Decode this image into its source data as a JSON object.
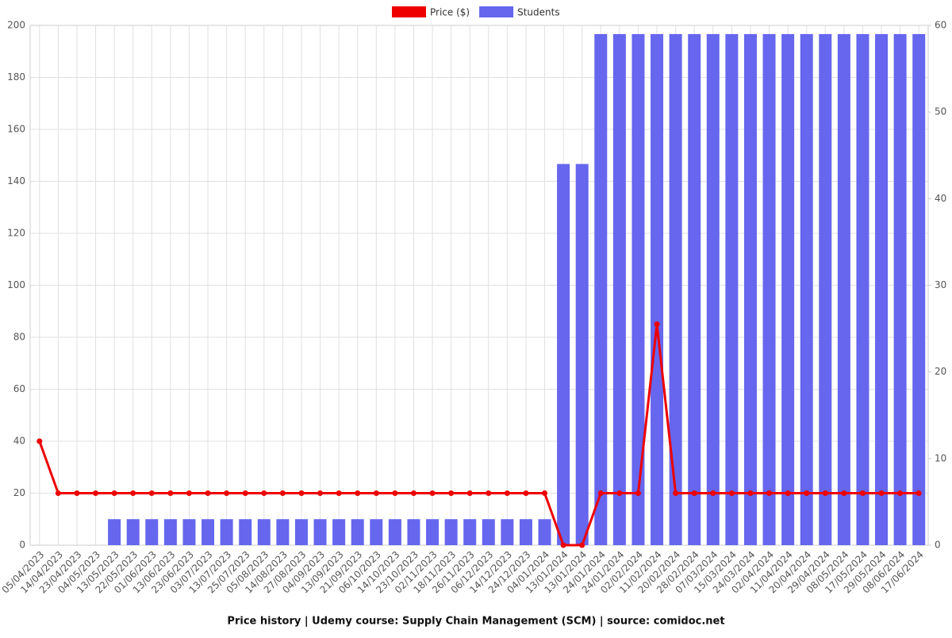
{
  "chart_data": {
    "type": "bar-line",
    "title": "Price history | Udemy course: Supply Chain Management (SCM) | source: comidoc.net",
    "categories": [
      "05/04/2023",
      "14/04/2023",
      "23/04/2023",
      "04/05/2023",
      "13/05/2023",
      "22/05/2023",
      "01/06/2023",
      "13/06/2023",
      "23/06/2023",
      "03/07/2023",
      "13/07/2023",
      "25/07/2023",
      "05/08/2023",
      "14/08/2023",
      "27/08/2023",
      "04/09/2023",
      "13/09/2023",
      "21/09/2023",
      "06/10/2023",
      "14/10/2023",
      "23/10/2023",
      "02/11/2023",
      "18/11/2023",
      "26/11/2023",
      "06/12/2023",
      "14/12/2023",
      "24/12/2023",
      "04/01/2024",
      "13/01/2024",
      "13/01/2024",
      "24/01/2024",
      "24/01/2024",
      "02/02/2024",
      "11/02/2024",
      "20/02/2024",
      "28/02/2024",
      "07/03/2024",
      "15/03/2024",
      "24/03/2024",
      "02/04/2024",
      "11/04/2024",
      "20/04/2024",
      "29/04/2024",
      "08/05/2024",
      "17/05/2024",
      "29/05/2024",
      "08/06/2024",
      "17/06/2024"
    ],
    "series": [
      {
        "name": "Price ($)",
        "type": "line",
        "color": "#ee0000",
        "axis": "y",
        "values": [
          40,
          20,
          20,
          20,
          20,
          20,
          20,
          20,
          20,
          20,
          20,
          20,
          20,
          20,
          20,
          20,
          20,
          20,
          20,
          20,
          20,
          20,
          20,
          20,
          20,
          20,
          20,
          20,
          0,
          0,
          20,
          20,
          20,
          85,
          20,
          20,
          20,
          20,
          20,
          20,
          20,
          20,
          20,
          20,
          20,
          20,
          20,
          20
        ]
      },
      {
        "name": "Students",
        "type": "bar",
        "color": "#6666ee",
        "axis": "y2",
        "values": [
          0,
          0,
          0,
          0,
          3,
          3,
          3,
          3,
          3,
          3,
          3,
          3,
          3,
          3,
          3,
          3,
          3,
          3,
          3,
          3,
          3,
          3,
          3,
          3,
          3,
          3,
          3,
          3,
          44,
          44,
          59,
          59,
          59,
          59,
          59,
          59,
          59,
          59,
          59,
          59,
          59,
          59,
          59,
          59,
          59,
          59,
          59,
          59
        ]
      }
    ],
    "ylim": [
      0,
      200
    ],
    "yticks": [
      0,
      20,
      40,
      60,
      80,
      100,
      120,
      140,
      160,
      180,
      200
    ],
    "y2lim": [
      0,
      60
    ],
    "y2ticks": [
      0,
      10,
      20,
      30,
      40,
      50,
      60
    ],
    "grid": true,
    "legend": "top"
  }
}
